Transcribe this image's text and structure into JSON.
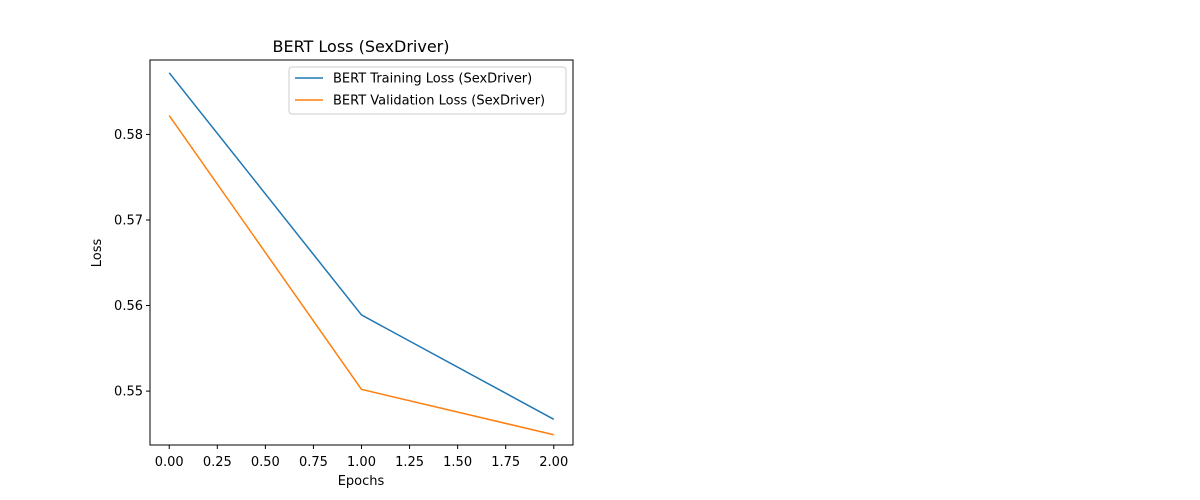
{
  "chart_data": {
    "type": "line",
    "title": "BERT Loss (SexDriver)",
    "xlabel": "Epochs",
    "ylabel": "Loss",
    "x": [
      0,
      1,
      2
    ],
    "xlim": [
      -0.1,
      2.1
    ],
    "ylim": [
      0.5437,
      0.5887
    ],
    "xticks": [
      0.0,
      0.25,
      0.5,
      0.75,
      1.0,
      1.25,
      1.5,
      1.75,
      2.0
    ],
    "xtick_labels": [
      "0.00",
      "0.25",
      "0.50",
      "0.75",
      "1.00",
      "1.25",
      "1.50",
      "1.75",
      "2.00"
    ],
    "yticks": [
      0.55,
      0.56,
      0.57,
      0.58
    ],
    "ytick_labels": [
      "0.55",
      "0.56",
      "0.57",
      "0.58"
    ],
    "grid": false,
    "legend_position": "top-right",
    "series": [
      {
        "name": "BERT Training Loss (SexDriver)",
        "values": [
          0.5872,
          0.5589,
          0.5467
        ],
        "color": "#1f77b4"
      },
      {
        "name": "BERT Validation Loss (SexDriver)",
        "values": [
          0.5822,
          0.5502,
          0.5449
        ],
        "color": "#ff7f0e"
      }
    ]
  }
}
